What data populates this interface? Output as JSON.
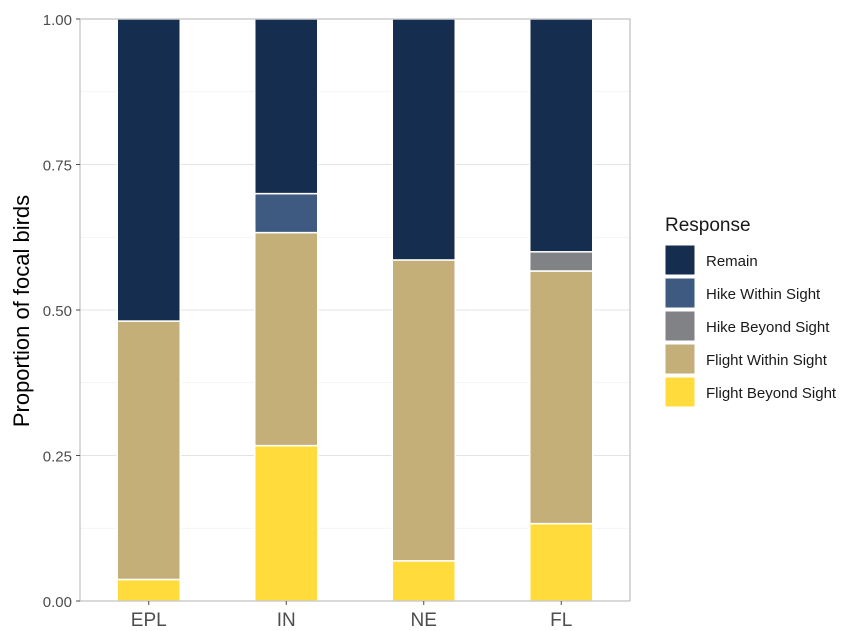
{
  "chart_data": {
    "type": "bar",
    "stacked": true,
    "categories": [
      "EPL",
      "IN",
      "NE",
      "FL"
    ],
    "series": [
      {
        "name": "Flight Beyond Sight",
        "color": "#FFDC3C",
        "values": [
          0.037,
          0.267,
          0.069,
          0.133
        ]
      },
      {
        "name": "Flight Within Sight",
        "color": "#C4AF78",
        "values": [
          0.444,
          0.366,
          0.517,
          0.434
        ]
      },
      {
        "name": "Hike Beyond Sight",
        "color": "#808285",
        "values": [
          0.0,
          0.0,
          0.0,
          0.033
        ]
      },
      {
        "name": "Hike Within Sight",
        "color": "#3E5A80",
        "values": [
          0.0,
          0.067,
          0.0,
          0.0
        ]
      },
      {
        "name": "Remain",
        "color": "#152D4E",
        "values": [
          0.519,
          0.3,
          0.414,
          0.4
        ]
      }
    ],
    "title": "",
    "xlabel": "",
    "ylabel": "Proportion of focal birds",
    "ylim": [
      0,
      1
    ],
    "yticks": [
      "0.00",
      "0.25",
      "0.50",
      "0.75",
      "1.00"
    ],
    "grid": true,
    "legend": {
      "title": "Response",
      "placement": "right",
      "items": [
        "Remain",
        "Hike Within Sight",
        "Hike Beyond Sight",
        "Flight Within Sight",
        "Flight Beyond Sight"
      ]
    }
  }
}
